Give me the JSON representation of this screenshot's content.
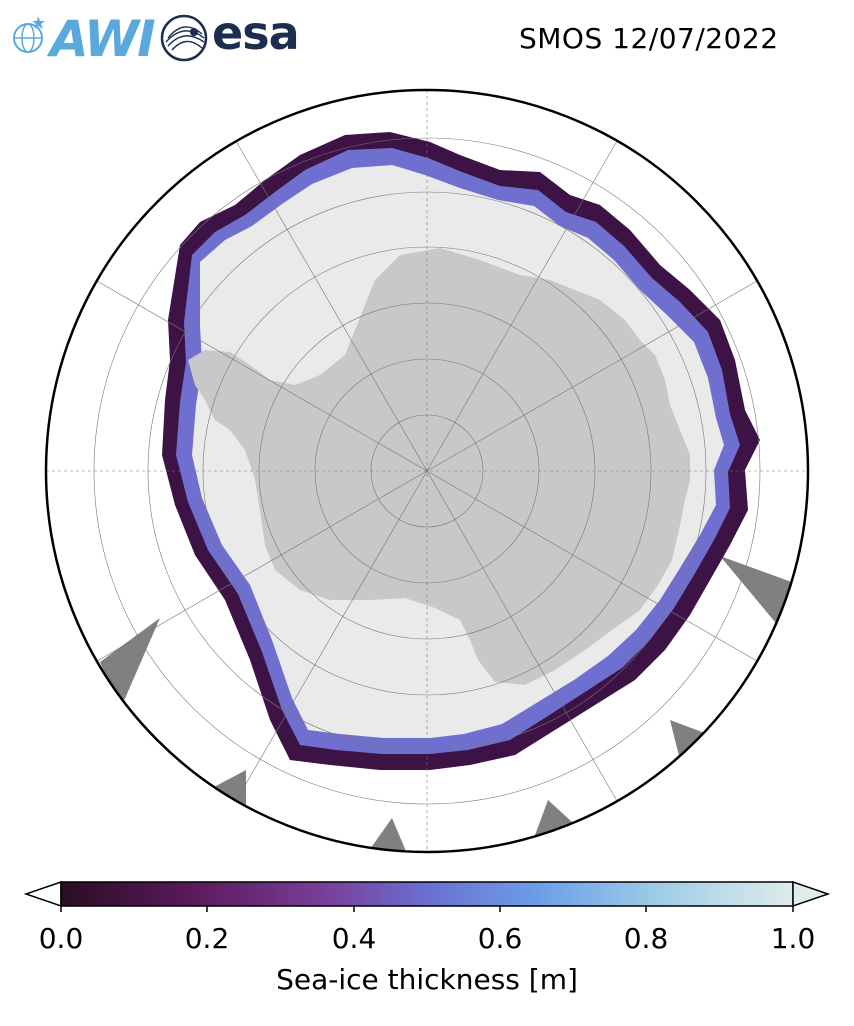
{
  "header": {
    "title": "SMOS 12/07/2022",
    "logos": [
      {
        "name": "awi-logo",
        "text": "AWI",
        "color": "#5aa9dc"
      },
      {
        "name": "esa-logo",
        "text": "esa",
        "color": "#1b2e4f"
      }
    ]
  },
  "map": {
    "projection": "south-polar-stereographic",
    "land_color": "#c8c8c8",
    "thick_ice_color": "#eaeaea",
    "no_data_color": "#808080",
    "grid": true
  },
  "colorbar": {
    "label": "Sea-ice thickness [m]",
    "ticks": [
      "0.0",
      "0.2",
      "0.4",
      "0.6",
      "0.8",
      "1.0"
    ],
    "range": [
      0.0,
      1.0
    ],
    "extend": "both",
    "colors": [
      "#2a0d24",
      "#5a1a5c",
      "#7a3f9a",
      "#6a6fd0",
      "#6c9ee8",
      "#9fcde6",
      "#dfecec"
    ]
  }
}
